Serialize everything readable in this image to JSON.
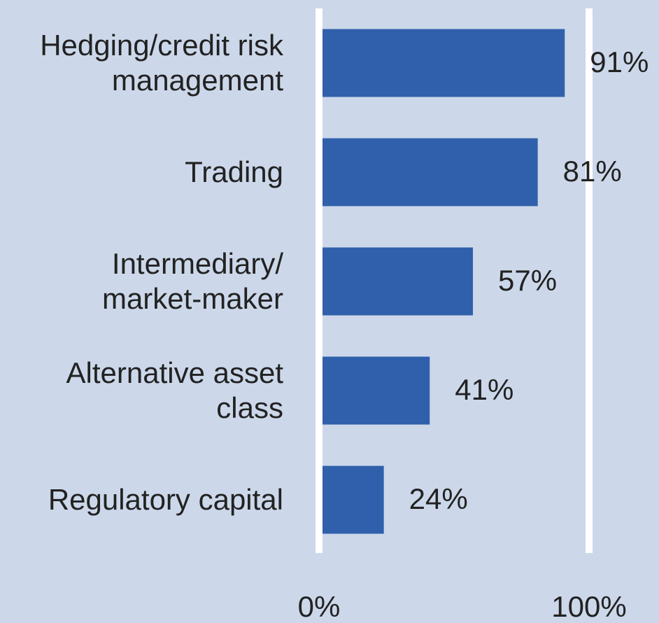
{
  "chart_data": {
    "type": "bar",
    "orientation": "horizontal",
    "categories": [
      "Hedging/credit risk\nmanagement",
      "Trading",
      "Intermediary/\nmarket-maker",
      "Alternative asset\nclass",
      "Regulatory capital"
    ],
    "values": [
      91,
      81,
      57,
      41,
      24
    ],
    "value_labels": [
      "91%",
      "81%",
      "57%",
      "41%",
      "24%"
    ],
    "color": "#3060ab",
    "xlim": [
      0,
      100
    ],
    "xticks": [
      {
        "value": 0,
        "label": "0%"
      },
      {
        "value": 100,
        "label": "100%"
      }
    ],
    "grid": true
  }
}
